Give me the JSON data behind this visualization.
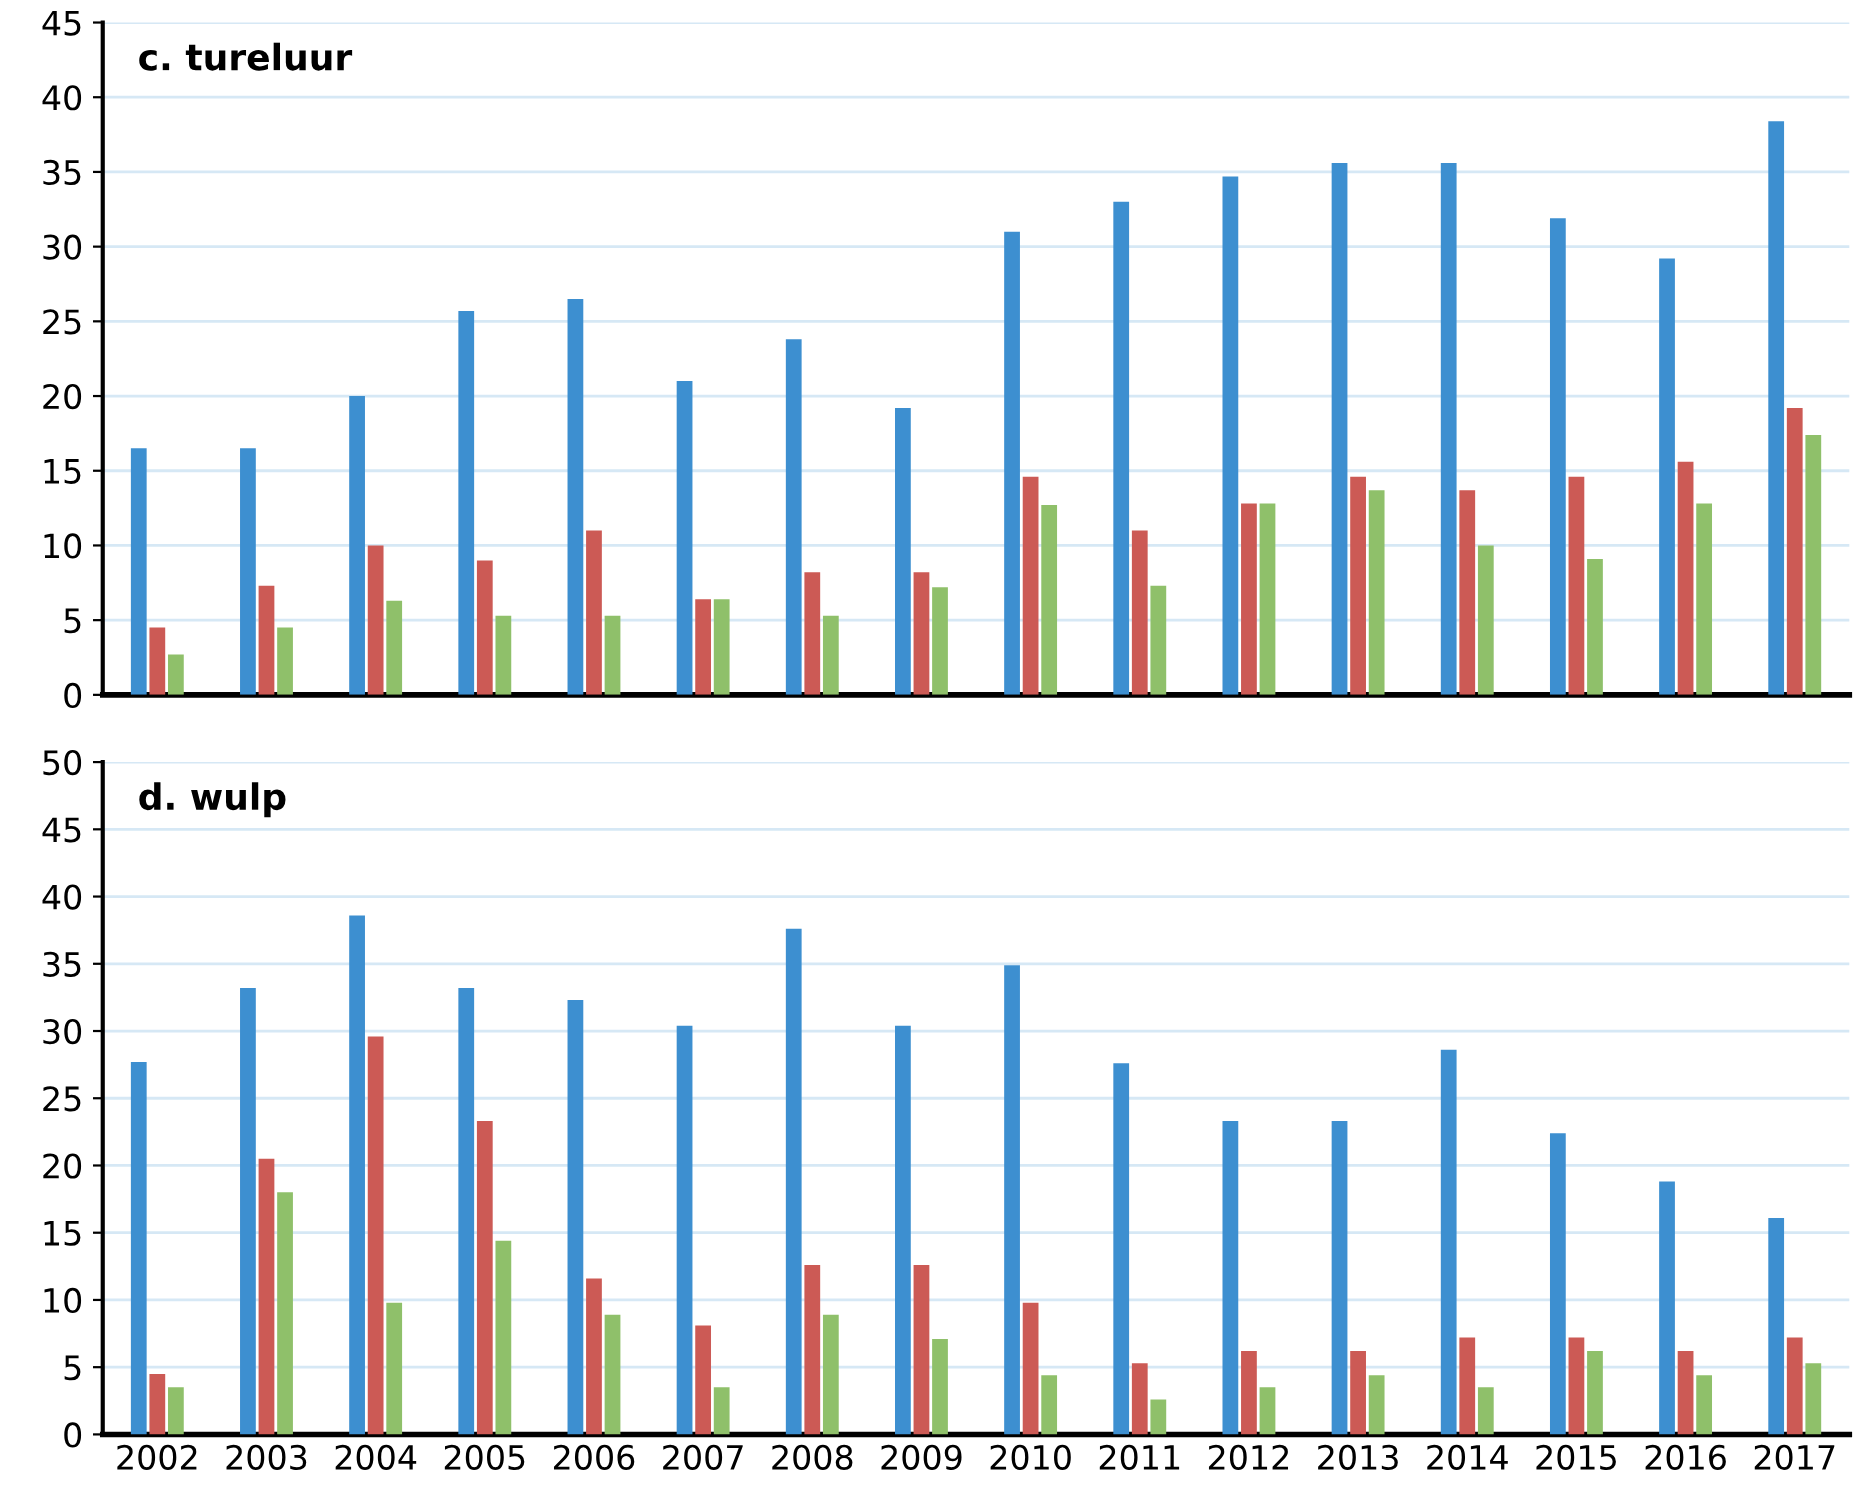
{
  "chart_data": [
    {
      "type": "bar",
      "title": "c. tureluur",
      "categories": [
        "2002",
        "2003",
        "2004",
        "2005",
        "2006",
        "2007",
        "2008",
        "2009",
        "2010",
        "2011",
        "2012",
        "2013",
        "2014",
        "2015",
        "2016",
        "2017"
      ],
      "series": [
        {
          "color": "#3d8fd0",
          "values": [
            16.5,
            16.5,
            20,
            25.7,
            26.5,
            21,
            23.8,
            19.2,
            31,
            33,
            34.7,
            35.6,
            35.6,
            31.9,
            29.2,
            38.4
          ]
        },
        {
          "color": "#cc5a55",
          "values": [
            4.5,
            7.3,
            10,
            9,
            11,
            6.4,
            8.2,
            8.2,
            14.6,
            11,
            12.8,
            14.6,
            13.7,
            14.6,
            15.6,
            19.2
          ]
        },
        {
          "color": "#8fc06a",
          "values": [
            2.7,
            4.5,
            6.3,
            5.3,
            5.3,
            6.4,
            5.3,
            7.2,
            12.7,
            7.3,
            12.8,
            13.7,
            10,
            9.1,
            12.8,
            17.4
          ]
        }
      ],
      "ylim": [
        0,
        45
      ],
      "yticks": [
        0,
        5,
        10,
        15,
        20,
        25,
        30,
        35,
        40,
        45
      ],
      "grid": "y",
      "tick_labels": "y"
    },
    {
      "type": "bar",
      "title": "d. wulp",
      "categories": [
        "2002",
        "2003",
        "2004",
        "2005",
        "2006",
        "2007",
        "2008",
        "2009",
        "2010",
        "2011",
        "2012",
        "2013",
        "2014",
        "2015",
        "2016",
        "2017"
      ],
      "series": [
        {
          "color": "#3d8fd0",
          "values": [
            27.7,
            33.2,
            38.6,
            33.2,
            32.3,
            30.4,
            37.6,
            30.4,
            34.9,
            27.6,
            23.3,
            23.3,
            28.6,
            22.4,
            18.8,
            16.1
          ]
        },
        {
          "color": "#cc5a55",
          "values": [
            4.5,
            20.5,
            29.6,
            23.3,
            11.6,
            8.1,
            12.6,
            12.6,
            9.8,
            5.3,
            6.2,
            6.2,
            7.2,
            7.2,
            6.2,
            7.2
          ]
        },
        {
          "color": "#8fc06a",
          "values": [
            3.5,
            18,
            9.8,
            14.4,
            8.9,
            3.5,
            8.9,
            7.1,
            4.4,
            2.6,
            3.5,
            4.4,
            3.5,
            6.2,
            4.4,
            5.3
          ]
        }
      ],
      "ylim": [
        0,
        50
      ],
      "yticks": [
        0,
        5,
        10,
        15,
        20,
        25,
        30,
        35,
        40,
        45,
        50
      ],
      "grid": "y"
    }
  ]
}
